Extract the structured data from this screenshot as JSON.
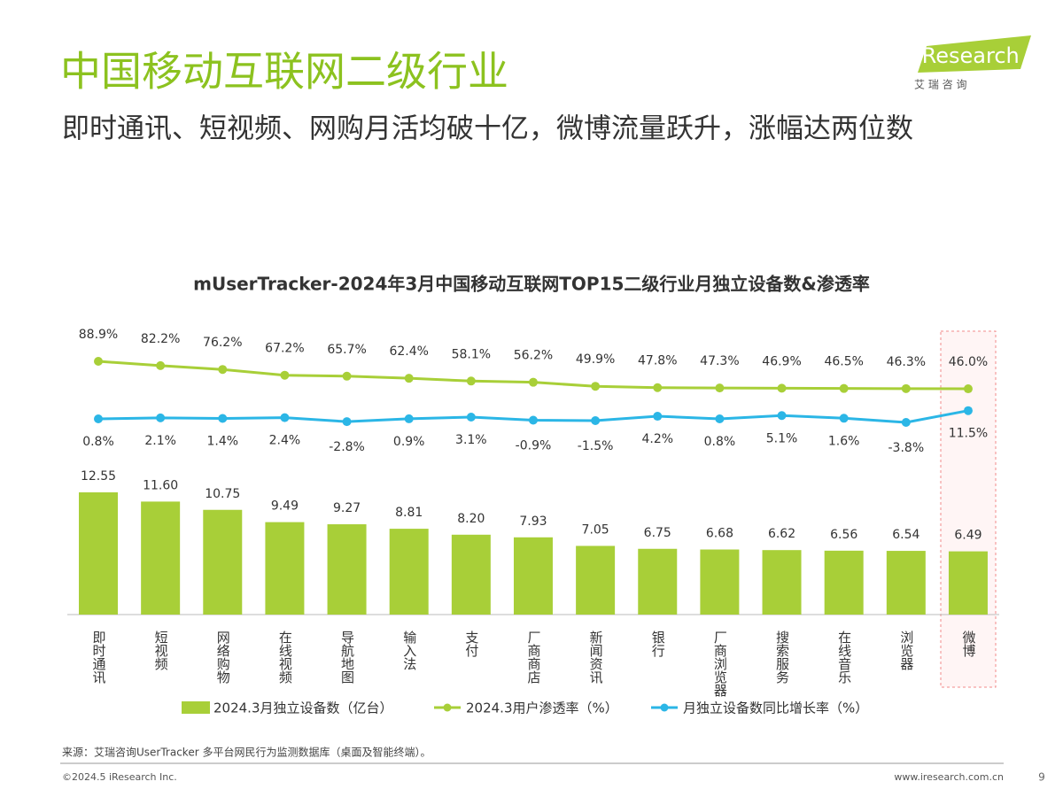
{
  "header": {
    "title": "中国移动互联网二级行业",
    "subtitle": "即时通讯、短视频、网购月活均破十亿，微博流量跃升，涨幅达两位数",
    "logo": "iResearch",
    "logo_sub": "艾 瑞 咨 询"
  },
  "chart_data": {
    "type": "bar_line",
    "title": "mUserTracker-2024年3月中国移动互联网TOP15二级行业月独立设备数&渗透率",
    "categories": [
      "即时通讯",
      "短视频",
      "网络购物",
      "在线视频",
      "导航地图",
      "输入法",
      "支付",
      "厂商商店",
      "新闻资讯",
      "银行",
      "厂商浏览器",
      "搜索服务",
      "在线音乐",
      "浏览器",
      "微博"
    ],
    "series": [
      {
        "name": "2024.3月独立设备数（亿台）",
        "type": "bar",
        "color": "#a8cf38",
        "values": [
          12.55,
          11.6,
          10.75,
          9.49,
          9.27,
          8.81,
          8.2,
          7.93,
          7.05,
          6.75,
          6.68,
          6.62,
          6.56,
          6.54,
          6.49
        ],
        "value_labels": [
          "12.55",
          "11.60",
          "10.75",
          "9.49",
          "9.27",
          "8.81",
          "8.20",
          "7.93",
          "7.05",
          "6.75",
          "6.68",
          "6.62",
          "6.56",
          "6.54",
          "6.49"
        ]
      },
      {
        "name": "2024.3用户渗透率（%）",
        "type": "line",
        "color": "#a8cf38",
        "values": [
          88.9,
          82.2,
          76.2,
          67.2,
          65.7,
          62.4,
          58.1,
          56.2,
          49.9,
          47.8,
          47.3,
          46.9,
          46.5,
          46.3,
          46.0
        ],
        "value_labels": [
          "88.9%",
          "82.2%",
          "76.2%",
          "67.2%",
          "65.7%",
          "62.4%",
          "58.1%",
          "56.2%",
          "49.9%",
          "47.8%",
          "47.3%",
          "46.9%",
          "46.5%",
          "46.3%",
          "46.0%"
        ]
      },
      {
        "name": "月独立设备数同比增长率（%）",
        "type": "line",
        "color": "#2bb6e6",
        "values": [
          0.8,
          2.1,
          1.4,
          2.4,
          -2.8,
          0.9,
          3.1,
          -0.9,
          -1.5,
          4.2,
          0.8,
          5.1,
          1.6,
          -3.8,
          11.5
        ],
        "value_labels": [
          "0.8%",
          "2.1%",
          "1.4%",
          "2.4%",
          "-2.8%",
          "0.9%",
          "3.1%",
          "-0.9%",
          "-1.5%",
          "4.2%",
          "0.8%",
          "5.1%",
          "1.6%",
          "-3.8%",
          "11.5%"
        ]
      }
    ]
  },
  "footer": {
    "source": "来源：艾瑞咨询UserTracker 多平台网民行为监测数据库（桌面及智能终端）。",
    "copyright": "©2024.5 iResearch Inc.",
    "url": "www.iresearch.com.cn",
    "page": "9"
  }
}
